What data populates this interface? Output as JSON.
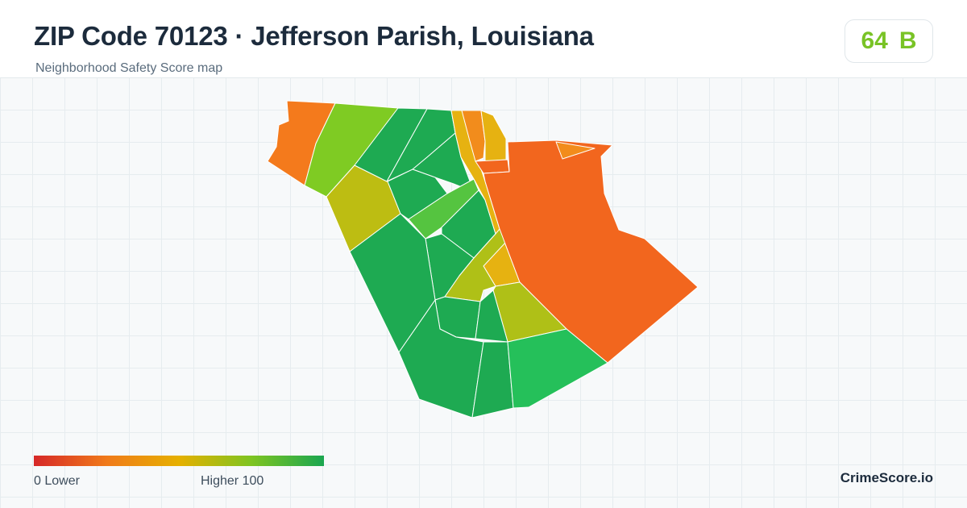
{
  "header": {
    "title": "ZIP Code 70123 · Jefferson Parish, Louisiana",
    "subtitle": "Neighborhood Safety Score map"
  },
  "score": {
    "value": "64",
    "grade": "B",
    "color": "#79c326"
  },
  "legend": {
    "min_label": "0  Lower",
    "max_label": "Higher  100",
    "scale": [
      0,
      100
    ],
    "gradient_colors": [
      "#d62828",
      "#f07a1a",
      "#e6b000",
      "#7ec421",
      "#1aa650"
    ]
  },
  "brand": "CrimeScore.io",
  "map": {
    "neighborhood_colors": {
      "west_tip": "#f47a1c",
      "north_band": "#7fcb23",
      "olive_block": "#bdbd12",
      "green_mid_north": "#1eaa52",
      "lime_strip": "#55c440",
      "corridor": "#e6b211",
      "east_large": "#f2661e",
      "northeast_small": "#f28c1c",
      "olive_south": "#afc017",
      "bright_green_south": "#25c05a"
    }
  }
}
